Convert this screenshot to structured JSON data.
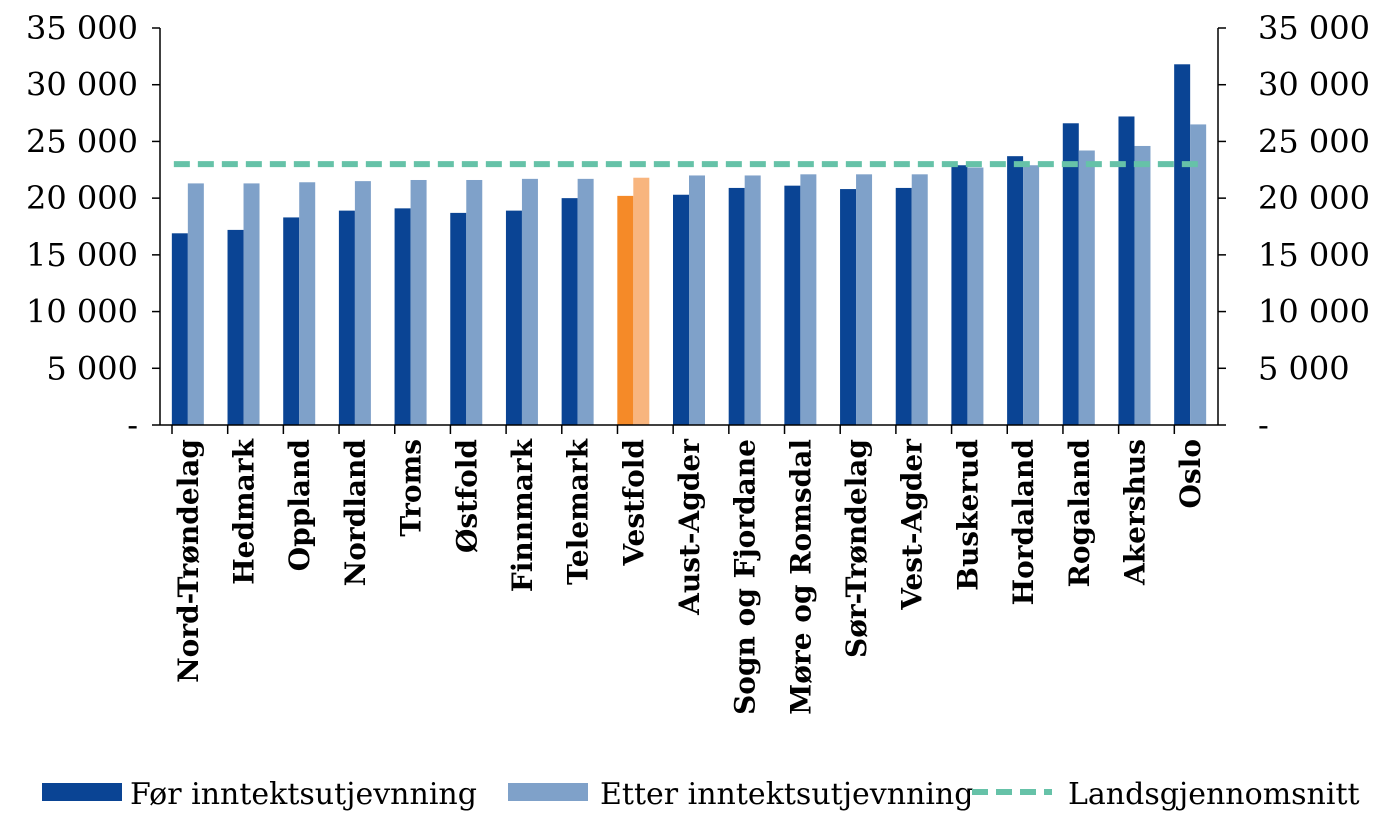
{
  "chart_data": {
    "type": "bar",
    "categories": [
      "Nord-Trøndelag",
      "Hedmark",
      "Oppland",
      "Nordland",
      "Troms",
      "Østfold",
      "Finnmark",
      "Telemark",
      "Vestfold",
      "Aust-Agder",
      "Sogn og Fjordane",
      "Møre og Romsdal",
      "Sør-Trøndelag",
      "Vest-Agder",
      "Buskerud",
      "Hordaland",
      "Rogaland",
      "Akershus",
      "Oslo"
    ],
    "series": [
      {
        "name": "Før inntektsutjevnning",
        "type": "bar",
        "color": "#0a4494",
        "values": [
          16900,
          17200,
          18300,
          18900,
          19100,
          18700,
          18900,
          20000,
          20200,
          20300,
          20900,
          21100,
          20800,
          20900,
          22900,
          23700,
          26600,
          27200,
          31800
        ]
      },
      {
        "name": "Etter inntektsutjevnning",
        "type": "bar",
        "color": "#7fa1c9",
        "values": [
          21300,
          21300,
          21400,
          21500,
          21600,
          21600,
          21700,
          21700,
          21800,
          22000,
          22000,
          22100,
          22100,
          22100,
          22700,
          22900,
          24200,
          24600,
          26500
        ]
      },
      {
        "name": "Landsgjennomsnitt",
        "type": "line",
        "style": "dashed",
        "color": "#66c2a8",
        "values": [
          23000,
          23000,
          23000,
          23000,
          23000,
          23000,
          23000,
          23000,
          23000,
          23000,
          23000,
          23000,
          23000,
          23000,
          23000,
          23000,
          23000,
          23000,
          23000
        ]
      }
    ],
    "highlight": {
      "category": "Vestfold",
      "colors": [
        "#f58a28",
        "#f8b57e"
      ]
    },
    "ylim": [
      0,
      35000
    ],
    "yticks": [
      0,
      5000,
      10000,
      15000,
      20000,
      25000,
      30000,
      35000
    ],
    "ytick_labels": [
      "-",
      "5 000",
      "10 000",
      "15 000",
      "20 000",
      "25 000",
      "30 000",
      "35 000"
    ],
    "secondary_y_axis": true,
    "legend_position": "bottom",
    "grid": false
  }
}
